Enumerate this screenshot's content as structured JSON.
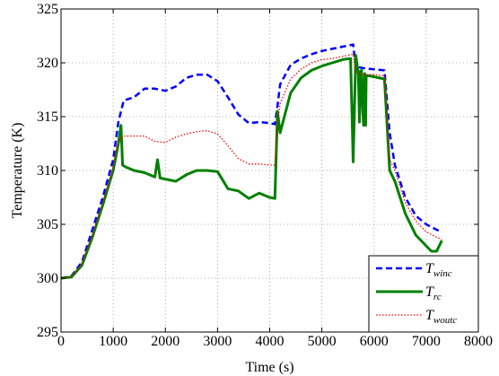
{
  "chart_data": {
    "type": "line",
    "title": "",
    "xlabel": "Time (s)",
    "ylabel": "Temperature (K)",
    "xlim": [
      0,
      8000
    ],
    "ylim": [
      295,
      325
    ],
    "x_ticks": [
      0,
      1000,
      2000,
      3000,
      4000,
      5000,
      6000,
      7000,
      8000
    ],
    "x_tick_labels": [
      "0",
      "1000",
      "2000",
      "3000",
      "4000",
      "5000",
      "6000",
      "7000",
      "8000"
    ],
    "y_ticks": [
      295,
      300,
      305,
      310,
      315,
      320,
      325
    ],
    "y_tick_labels": [
      "295",
      "300",
      "305",
      "310",
      "315",
      "320",
      "325"
    ],
    "grid": true,
    "legend_position": "bottom-right",
    "series": [
      {
        "name": "T",
        "subscript": "winc",
        "color": "#0000ff",
        "style": "dashed",
        "x": [
          0,
          200,
          400,
          600,
          800,
          1000,
          1100,
          1200,
          1400,
          1600,
          1800,
          2000,
          2200,
          2400,
          2600,
          2800,
          3000,
          3200,
          3400,
          3600,
          3800,
          4000,
          4100,
          4150,
          4200,
          4400,
          4600,
          4800,
          5000,
          5200,
          5400,
          5600,
          5650,
          5700,
          5800,
          6000,
          6200,
          6300,
          6400,
          6600,
          6800,
          7000,
          7200,
          7300
        ],
        "y": [
          300.0,
          300.2,
          301.5,
          304.5,
          307.5,
          311.0,
          314.5,
          316.5,
          316.8,
          317.6,
          317.6,
          317.4,
          317.8,
          318.6,
          318.9,
          318.9,
          318.3,
          316.8,
          315.2,
          314.4,
          314.5,
          314.4,
          314.3,
          316.0,
          318.0,
          319.8,
          320.4,
          320.8,
          321.1,
          321.3,
          321.5,
          321.7,
          319.6,
          319.6,
          319.5,
          319.4,
          319.3,
          313.5,
          310.5,
          307.5,
          305.8,
          305.0,
          304.5,
          304.3
        ]
      },
      {
        "name": "T",
        "subscript": "rc",
        "color": "#008000",
        "style": "solid",
        "x": [
          0,
          200,
          400,
          600,
          800,
          1000,
          1100,
          1150,
          1180,
          1250,
          1400,
          1600,
          1800,
          1850,
          1900,
          2000,
          2200,
          2400,
          2600,
          2800,
          3000,
          3100,
          3200,
          3400,
          3600,
          3800,
          4000,
          4100,
          4150,
          4200,
          4400,
          4600,
          4800,
          5000,
          5200,
          5400,
          5550,
          5580,
          5600,
          5650,
          5700,
          5720,
          5740,
          5760,
          5780,
          5800,
          5820,
          5840,
          5850,
          5900,
          6000,
          6200,
          6300,
          6400,
          6600,
          6800,
          7000,
          7100,
          7200,
          7300
        ],
        "y": [
          300.0,
          300.1,
          301.2,
          303.8,
          306.8,
          310.0,
          312.5,
          314.2,
          310.5,
          310.3,
          310.0,
          309.8,
          309.4,
          311.0,
          309.3,
          309.2,
          309.0,
          309.6,
          310.0,
          310.0,
          309.9,
          309.1,
          308.3,
          308.1,
          307.4,
          307.9,
          307.5,
          307.4,
          315.5,
          313.5,
          317.2,
          318.6,
          319.3,
          319.7,
          320.0,
          320.3,
          320.4,
          315.0,
          310.8,
          320.7,
          319.0,
          314.5,
          319.2,
          319.3,
          315.8,
          314.2,
          319.0,
          314.2,
          318.8,
          318.8,
          318.7,
          318.5,
          310.0,
          309.0,
          306.0,
          304.0,
          303.0,
          302.5,
          302.5,
          303.5
        ]
      },
      {
        "name": "T",
        "subscript": "woutc",
        "color": "#ff0000",
        "style": "dotted",
        "x": [
          0,
          200,
          400,
          600,
          800,
          1000,
          1100,
          1200,
          1400,
          1600,
          1800,
          2000,
          2200,
          2400,
          2600,
          2800,
          3000,
          3200,
          3400,
          3600,
          3800,
          4000,
          4100,
          4150,
          4200,
          4400,
          4600,
          4800,
          5000,
          5200,
          5400,
          5600,
          5650,
          5700,
          5800,
          6000,
          6200,
          6300,
          6400,
          6600,
          6800,
          7000,
          7200,
          7300
        ],
        "y": [
          300.0,
          300.1,
          301.4,
          304.0,
          307.0,
          310.3,
          312.8,
          313.2,
          313.2,
          313.2,
          312.7,
          312.6,
          313.1,
          313.4,
          313.6,
          313.7,
          313.4,
          312.3,
          311.1,
          310.6,
          310.6,
          310.5,
          310.5,
          314.5,
          316.2,
          318.5,
          319.4,
          320.0,
          320.3,
          320.4,
          320.6,
          320.8,
          319.1,
          319.0,
          318.9,
          318.9,
          318.8,
          311.0,
          310.0,
          307.0,
          305.3,
          304.3,
          303.8,
          303.6
        ]
      }
    ]
  }
}
